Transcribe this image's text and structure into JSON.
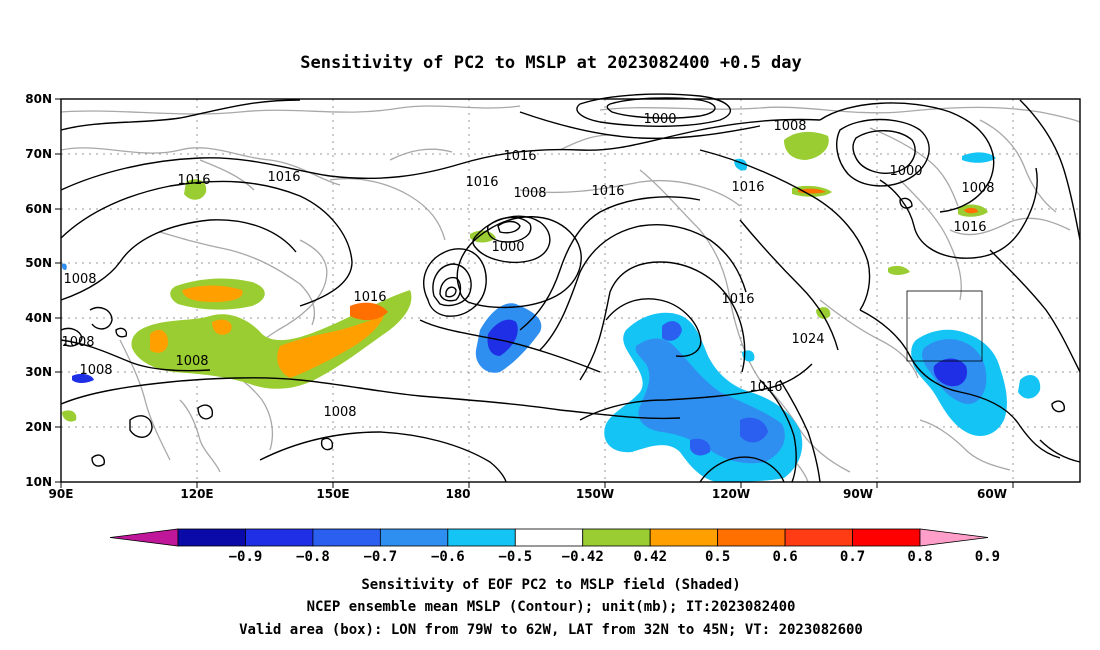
{
  "title": "Sensitivity of PC2 to MSLP at 2023082400 +0.5 day",
  "lat_labels": [
    "80N",
    "70N",
    "60N",
    "50N",
    "40N",
    "30N",
    "20N",
    "10N"
  ],
  "lon_labels": [
    "90E",
    "120E",
    "150E",
    "180",
    "150W",
    "120W",
    "90W",
    "60W"
  ],
  "colorbar": {
    "labels": [
      "-0.9",
      "-0.8",
      "-0.7",
      "-0.6",
      "-0.5",
      "-0.42",
      "0.42",
      "0.5",
      "0.6",
      "0.7",
      "0.8",
      "0.9"
    ],
    "colors": [
      "#c0169a",
      "#0a0aa8",
      "#1f2fe6",
      "#2a5ff0",
      "#2f8ff0",
      "#14c4f5",
      "#ffffff",
      "#9acd32",
      "#ffa000",
      "#ff7000",
      "#ff3c14",
      "#ff0000",
      "#ff9ec8"
    ]
  },
  "contour_labels": [
    "1000",
    "1000",
    "1000",
    "1008",
    "1008",
    "1008",
    "1008",
    "1008",
    "1008",
    "1008",
    "1008",
    "1016",
    "1016",
    "1016",
    "1016",
    "1016",
    "1016",
    "1016",
    "1016",
    "1016",
    "1016",
    "1024"
  ],
  "captions": {
    "line1": "Sensitivity of EOF PC2 to MSLP field (Shaded)",
    "line2": "NCEP ensemble mean MSLP (Contour); unit(mb); IT:2023082400",
    "line3": "Valid area (box): LON from 79W to 62W, LAT from 32N to 45N; VT: 2023082600"
  },
  "valid_box": {
    "lon_west": "79W",
    "lon_east": "62W",
    "lat_south": "32N",
    "lat_north": "45N"
  }
}
